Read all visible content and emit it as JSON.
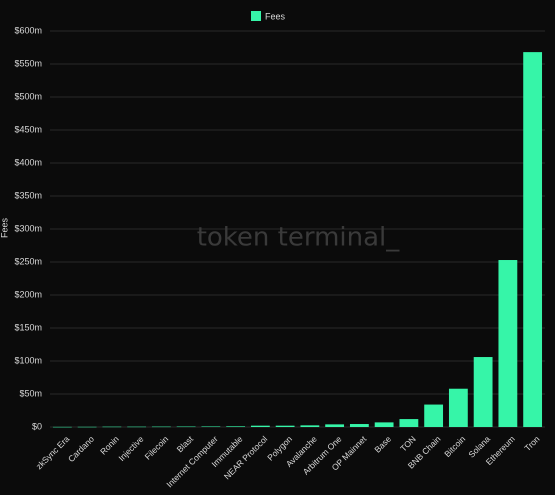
{
  "chart_data": {
    "type": "bar",
    "legend": "Fees",
    "y_label": "Fees",
    "watermark": "token terminal_",
    "color": "#36f5a8",
    "grid": true,
    "categories": [
      "zkSync Era",
      "Cardano",
      "Ronin",
      "Injective",
      "Filecoin",
      "Blast",
      "Internet Computer",
      "Immutable",
      "NEAR Protocol",
      "Polygon",
      "Avalanche",
      "Arbitrum One",
      "OP Mainnet",
      "Base",
      "TON",
      "BNB Chain",
      "Bitcoin",
      "Solana",
      "Ethereum",
      "Tron"
    ],
    "values": [
      0.2,
      0.3,
      0.5,
      0.5,
      0.6,
      0.7,
      0.8,
      1,
      2,
      2,
      2.5,
      4,
      4.5,
      7,
      12,
      34,
      58,
      106,
      253,
      568
    ],
    "ylim": [
      0,
      600
    ],
    "yticks": [
      {
        "value": 0,
        "label": "$0"
      },
      {
        "value": 50,
        "label": "$50m"
      },
      {
        "value": 100,
        "label": "$100m"
      },
      {
        "value": 150,
        "label": "$150m"
      },
      {
        "value": 200,
        "label": "$200m"
      },
      {
        "value": 250,
        "label": "$250m"
      },
      {
        "value": 300,
        "label": "$300m"
      },
      {
        "value": 350,
        "label": "$350m"
      },
      {
        "value": 400,
        "label": "$400m"
      },
      {
        "value": 450,
        "label": "$450m"
      },
      {
        "value": 500,
        "label": "$500m"
      },
      {
        "value": 550,
        "label": "$550m"
      },
      {
        "value": 600,
        "label": "$600m"
      }
    ]
  }
}
